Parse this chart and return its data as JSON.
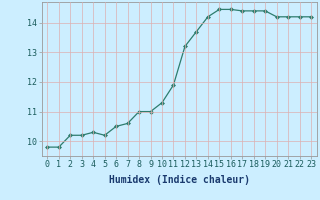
{
  "x": [
    0,
    1,
    2,
    3,
    4,
    5,
    6,
    7,
    8,
    9,
    10,
    11,
    12,
    13,
    14,
    15,
    16,
    17,
    18,
    19,
    20,
    21,
    22,
    23
  ],
  "y": [
    9.8,
    9.8,
    10.2,
    10.2,
    10.3,
    10.2,
    10.5,
    10.6,
    11.0,
    11.0,
    11.3,
    11.9,
    13.2,
    13.7,
    14.2,
    14.45,
    14.45,
    14.4,
    14.4,
    14.4,
    14.2,
    14.2,
    14.2,
    14.2
  ],
  "line_color": "#2e7d6e",
  "marker": "D",
  "marker_size": 2.0,
  "bg_color": "#cceeff",
  "grid_color": "#ddb0b0",
  "xlabel": "Humidex (Indice chaleur)",
  "xlim": [
    -0.5,
    23.5
  ],
  "ylim": [
    9.5,
    14.7
  ],
  "yticks": [
    10,
    11,
    12,
    13,
    14
  ],
  "xtick_labels": [
    "0",
    "1",
    "2",
    "3",
    "4",
    "5",
    "6",
    "7",
    "8",
    "9",
    "10",
    "11",
    "12",
    "13",
    "14",
    "15",
    "16",
    "17",
    "18",
    "19",
    "20",
    "21",
    "22",
    "23"
  ],
  "label_fontsize": 7,
  "tick_fontsize": 6,
  "tick_color": "#1a5c5c",
  "xlabel_color": "#1a3a6e"
}
